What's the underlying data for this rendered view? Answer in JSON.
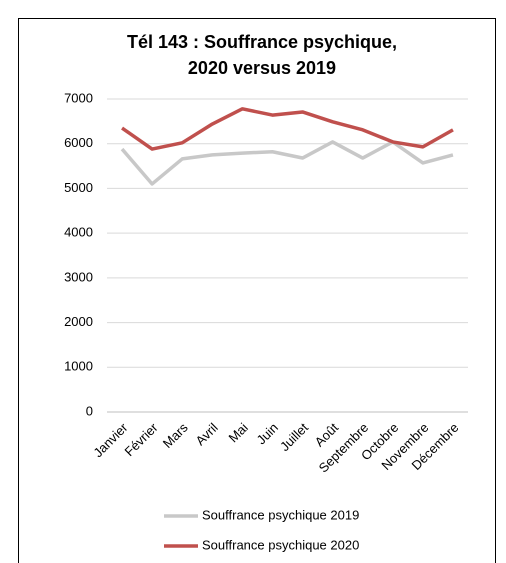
{
  "chart_data": {
    "type": "line",
    "title": [
      "Tél 143 :  Souffrance psychique,",
      "2020 versus 2019"
    ],
    "categories": [
      "Janvier",
      "Février",
      "Mars",
      "Avril",
      "Mai",
      "Juin",
      "Juillet",
      "Août",
      "Septembre",
      "Octobre",
      "Novembre",
      "Décembre"
    ],
    "series": [
      {
        "name": "Souffrance psychique 2019",
        "color": "#c8c8c8",
        "values": [
          5880,
          5100,
          5660,
          5750,
          5790,
          5820,
          5680,
          6040,
          5680,
          6040,
          5570,
          5750
        ]
      },
      {
        "name": "Souffrance psychique 2020",
        "color": "#c0504d",
        "values": [
          6350,
          5880,
          6020,
          6440,
          6780,
          6640,
          6710,
          6490,
          6310,
          6040,
          5930,
          6310
        ]
      }
    ],
    "ylim": [
      0,
      7000
    ],
    "yticks": [
      0,
      1000,
      2000,
      3000,
      4000,
      5000,
      6000,
      7000
    ],
    "grid": true
  }
}
